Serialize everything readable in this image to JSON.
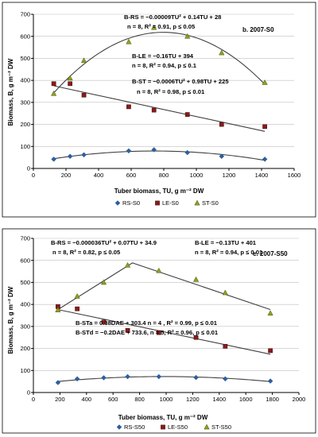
{
  "chart_data": [
    {
      "type": "scatter",
      "panel_label": "b. 2007-S0",
      "xlabel": "Tuber biomass, TU, g m⁻² DW",
      "ylabel": "Biomass, B, g m⁻² DW",
      "xlim": [
        0,
        1600
      ],
      "ylim": [
        0,
        700
      ],
      "xticks": [
        0,
        200,
        400,
        600,
        800,
        1000,
        1200,
        1400,
        1600
      ],
      "yticks": [
        0,
        100,
        200,
        300,
        400,
        500,
        600,
        700
      ],
      "grid": "horizontal",
      "legend_position": "bottom",
      "series": [
        {
          "name": "RS-S0",
          "marker": "diamond",
          "color": "#2e5f9e",
          "x": [
            125,
            225,
            310,
            585,
            740,
            945,
            1155,
            1420
          ],
          "y": [
            42,
            55,
            62,
            80,
            85,
            72,
            55,
            42
          ]
        },
        {
          "name": "LE-S0",
          "marker": "square",
          "color": "#8b1a1a",
          "x": [
            125,
            225,
            310,
            585,
            740,
            945,
            1155,
            1420
          ],
          "y": [
            385,
            385,
            333,
            280,
            265,
            245,
            200,
            190
          ]
        },
        {
          "name": "ST-S0",
          "marker": "triangle",
          "color": "#8fa01f",
          "x": [
            125,
            225,
            310,
            585,
            740,
            945,
            1155,
            1420
          ],
          "y": [
            340,
            410,
            490,
            575,
            640,
            600,
            525,
            390
          ]
        }
      ],
      "annotations": [
        {
          "text": "B-RS = −0.00009TU² + 0.14TU + 28"
        },
        {
          "text": "n = 8, R² = 0.91, p ≤ 0.05"
        },
        {
          "text": "B-LE = −0.16TU + 394"
        },
        {
          "text": "n = 8, R² = 0.94, p ≤ 0.1"
        },
        {
          "text": "B-ST = −0.0006TU² + 0.98TU + 225"
        },
        {
          "text": "n = 8, R² = 0.98, p ≤ 0.01"
        }
      ]
    },
    {
      "type": "scatter",
      "panel_label": "c. 2007-S50",
      "xlabel": "Tuber biomass, TU, g m⁻² DW",
      "ylabel": "Biomass, B, g m⁻² DW",
      "xlim": [
        0,
        2000
      ],
      "ylim": [
        0,
        700
      ],
      "xticks": [
        0,
        200,
        400,
        600,
        800,
        1000,
        1200,
        1400,
        1600,
        1800,
        2000
      ],
      "yticks": [
        0,
        100,
        200,
        300,
        400,
        500,
        600,
        700
      ],
      "grid": "horizontal",
      "legend_position": "bottom",
      "series": [
        {
          "name": "RS-S50",
          "marker": "diamond",
          "color": "#2e5f9e",
          "x": [
            185,
            330,
            530,
            710,
            945,
            1225,
            1445,
            1785
          ],
          "y": [
            45,
            62,
            67,
            72,
            72,
            68,
            62,
            52
          ]
        },
        {
          "name": "LE-S50",
          "marker": "square",
          "color": "#8b1a1a",
          "x": [
            185,
            330,
            530,
            710,
            945,
            1225,
            1445,
            1785
          ],
          "y": [
            390,
            380,
            320,
            282,
            272,
            250,
            210,
            190
          ]
        },
        {
          "name": "ST-S50",
          "marker": "triangle",
          "color": "#8fa01f",
          "x": [
            185,
            330,
            530,
            710,
            945,
            1225,
            1445,
            1785
          ],
          "y": [
            375,
            437,
            500,
            578,
            553,
            513,
            453,
            360
          ]
        }
      ],
      "annotations": [
        {
          "text": "B-RS = −0.000036TU² + 0.07TU + 34.9"
        },
        {
          "text": "n = 8, R² = 0.82, p ≤ 0.05"
        },
        {
          "text": "B-LE = −0.13TU + 401"
        },
        {
          "text": "n = 8, R² = 0.94, p ≤ 0.01"
        },
        {
          "text": "B-STa = 0.38DAE + 303.4 n = 4 , R² = 0.99, p ≤ 0.01"
        },
        {
          "text": "B-STd = −0.2DAE + 733.6, n = 5, R² = 0.96, p ≤ 0.01"
        }
      ]
    }
  ]
}
